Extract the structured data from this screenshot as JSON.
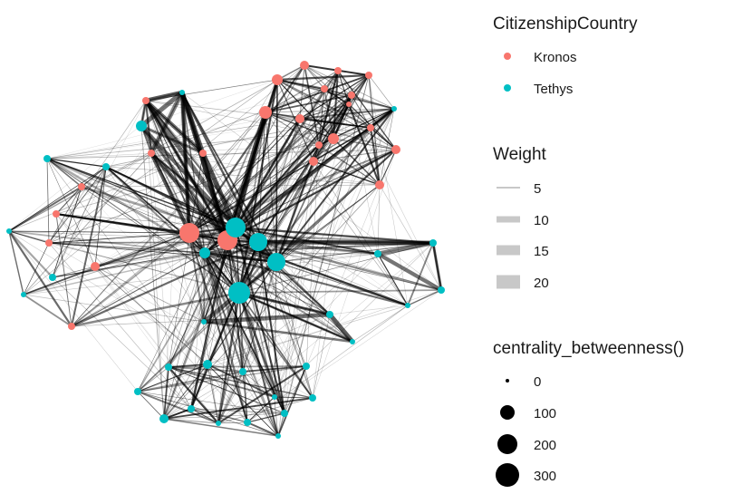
{
  "legend": {
    "citizenship": {
      "title": "CitizenshipCountry",
      "items": [
        {
          "label": "Kronos",
          "color": "#f8766d"
        },
        {
          "label": "Tethys",
          "color": "#00bfc4"
        }
      ]
    },
    "weight": {
      "title": "Weight",
      "items": [
        {
          "label": "5",
          "value": 5
        },
        {
          "label": "10",
          "value": 10
        },
        {
          "label": "15",
          "value": 15
        },
        {
          "label": "20",
          "value": 20
        }
      ]
    },
    "centrality": {
      "title": "centrality_betweenness()",
      "items": [
        {
          "label": "0",
          "value": 0
        },
        {
          "label": "100",
          "value": 100
        },
        {
          "label": "200",
          "value": 200
        },
        {
          "label": "300",
          "value": 300
        }
      ]
    }
  },
  "colors": {
    "kronos": "#f8766d",
    "tethys": "#00bfc4",
    "edge": "#000000",
    "legend_line": "#c8c8c8"
  }
}
